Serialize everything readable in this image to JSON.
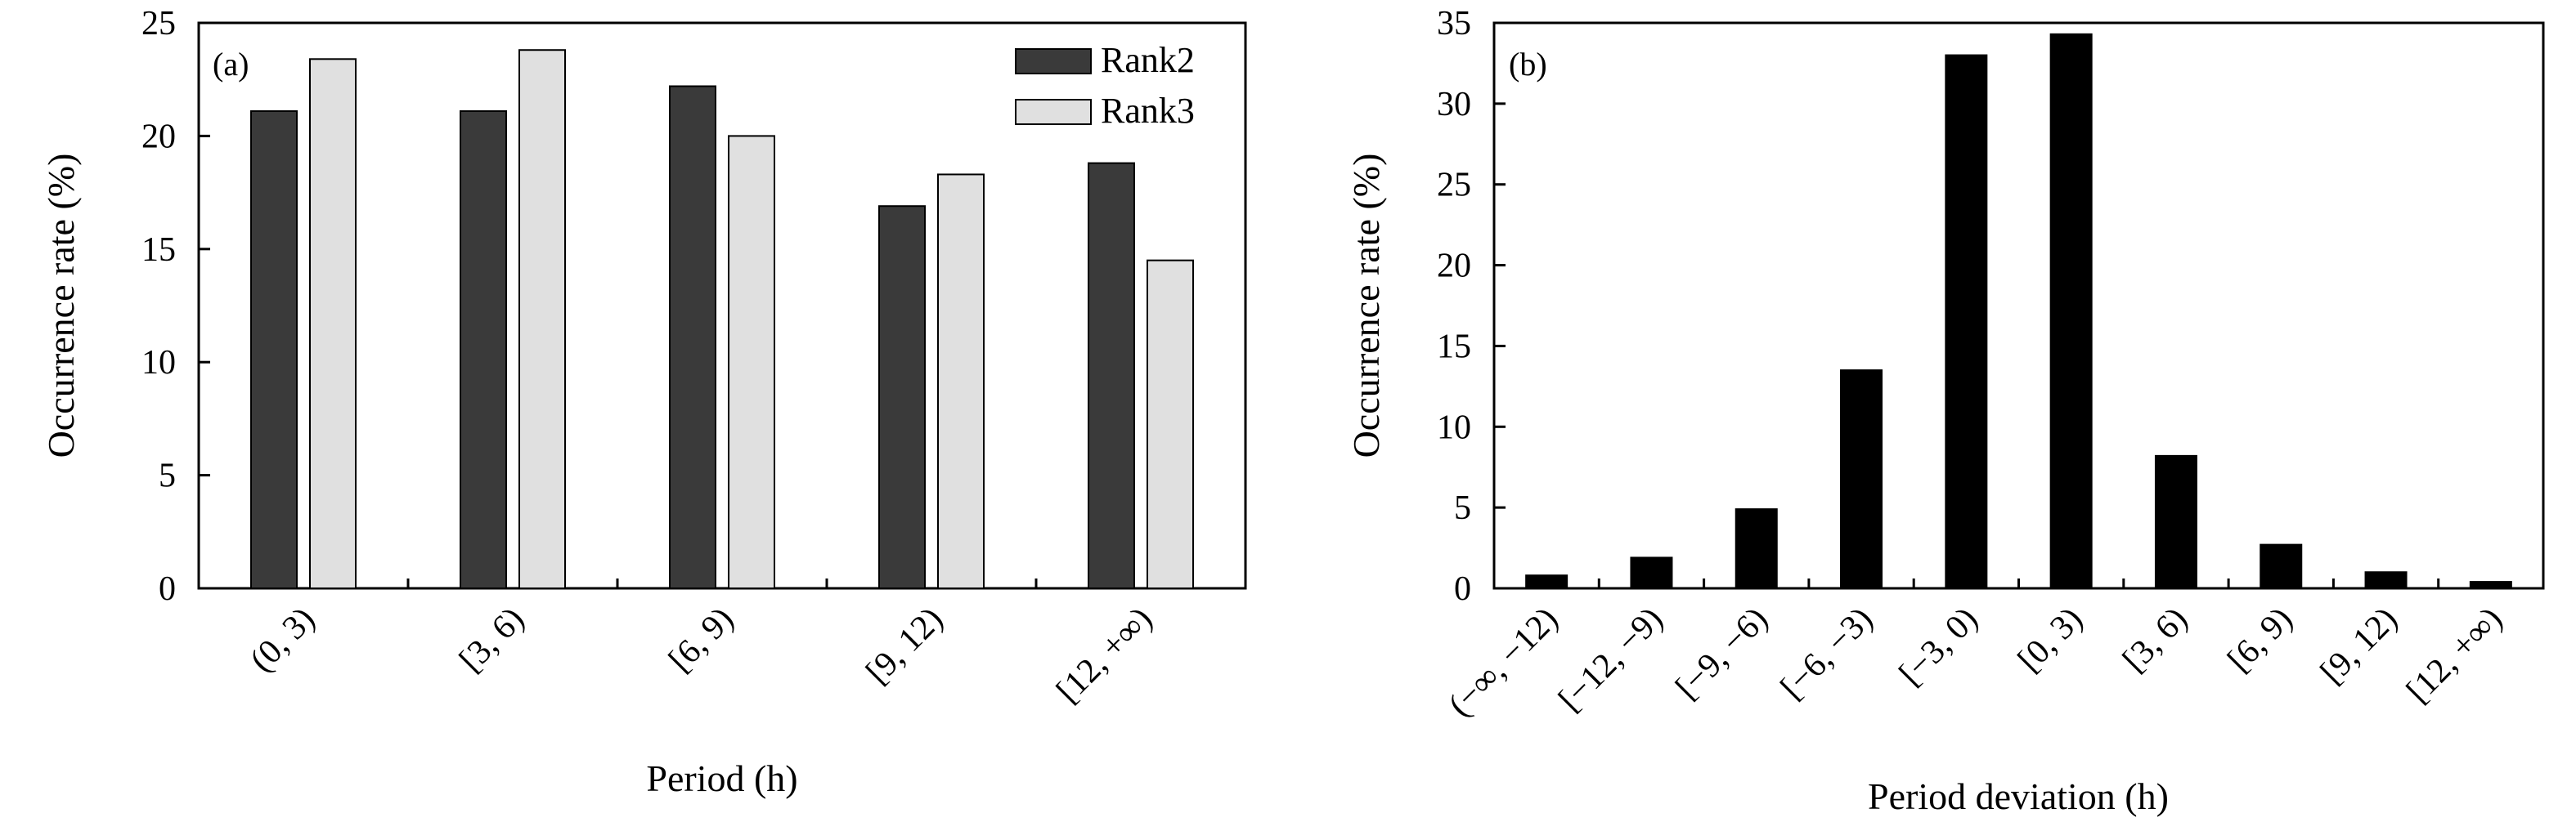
{
  "chart_data": [
    {
      "type": "bar",
      "panel_label": "(a)",
      "xlabel": "Period (h)",
      "ylabel": "Occurrence rate (%)",
      "ylim": [
        0,
        25
      ],
      "yticks": [
        "0",
        "5",
        "10",
        "15",
        "20",
        "25"
      ],
      "categories": [
        "(0, 3)",
        "[3, 6)",
        "[6, 9)",
        "[9, 12)",
        "[12, +∞)"
      ],
      "legend_position": "top-right",
      "series": [
        {
          "name": "Rank2",
          "color": "#3a3a3a",
          "values": [
            21.1,
            21.1,
            22.2,
            16.9,
            18.8
          ]
        },
        {
          "name": "Rank3",
          "color": "#e0e0e0",
          "values": [
            23.4,
            23.8,
            20.0,
            18.3,
            14.5
          ]
        }
      ]
    },
    {
      "type": "bar",
      "panel_label": "(b)",
      "xlabel": "Period deviation (h)",
      "ylabel": "Occurrence rate (%)",
      "ylim": [
        0,
        35
      ],
      "yticks": [
        "0",
        "5",
        "10",
        "15",
        "20",
        "25",
        "30",
        "35"
      ],
      "categories": [
        "(−∞, −12)",
        "[−12, −9)",
        "[−9, −6)",
        "[−6, −3)",
        "[−3, 0)",
        "[0, 3)",
        "[3, 6)",
        "[6, 9)",
        "[9, 12)",
        "[12, +∞)"
      ],
      "series": [
        {
          "color": "#000000",
          "values": [
            0.8,
            1.9,
            4.9,
            13.5,
            33.0,
            34.3,
            8.2,
            2.7,
            1.0,
            0.4
          ]
        }
      ]
    }
  ]
}
